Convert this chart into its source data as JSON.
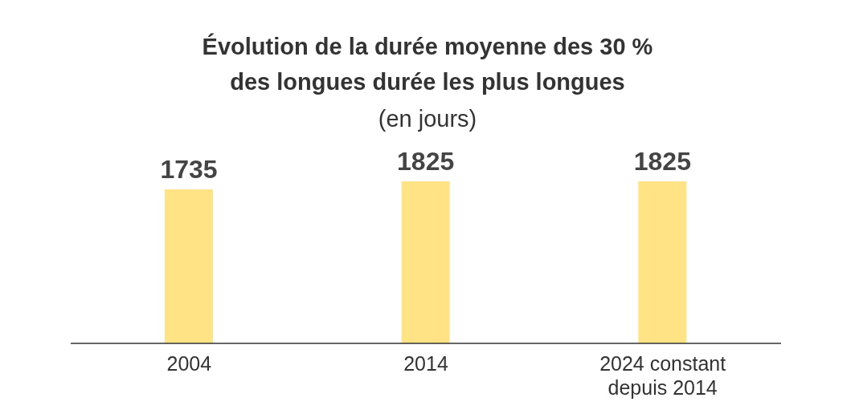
{
  "chart_data": {
    "type": "bar",
    "title": "Évolution de la durée moyenne des 30 % des longues durée les plus longues",
    "subtitle": "(en jours)",
    "categories": [
      "2004",
      "2014",
      "2024 constant depuis 2014"
    ],
    "values": [
      1735,
      1825,
      1825
    ],
    "color": "#ffe385",
    "data_labels": true,
    "tick_labels": "x"
  }
}
